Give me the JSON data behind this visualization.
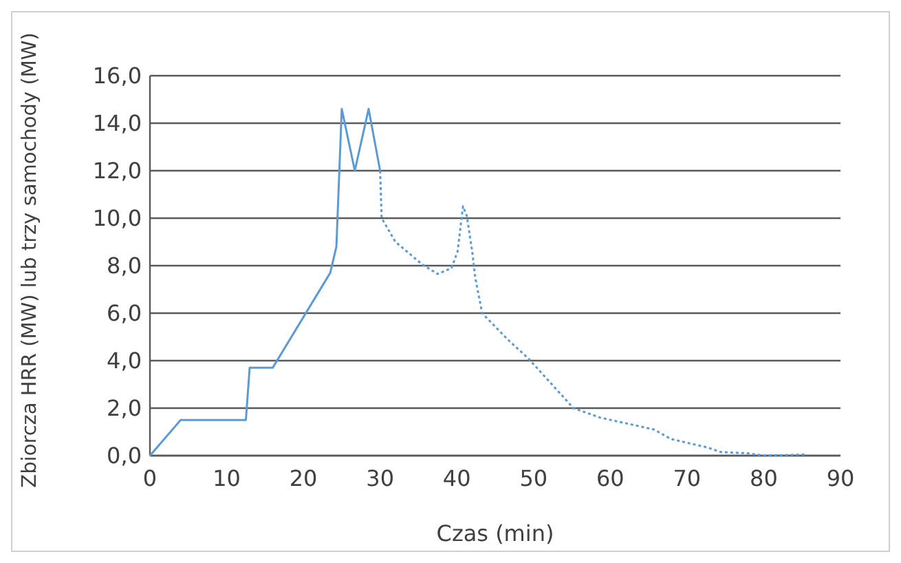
{
  "chart_data": {
    "type": "line",
    "xlabel": "Czas (min)",
    "ylabel": "Zbiorcza HRR (MW) lub trzy samochody (MW)",
    "xlim": [
      0,
      90
    ],
    "xticks": [
      0,
      10,
      20,
      30,
      40,
      50,
      60,
      70,
      80,
      90
    ],
    "ylim": [
      0,
      16
    ],
    "yticks": [
      {
        "value": 0,
        "label": "0,0"
      },
      {
        "value": 2,
        "label": "2,0"
      },
      {
        "value": 4,
        "label": "4,0"
      },
      {
        "value": 6,
        "label": "6,0"
      },
      {
        "value": 8,
        "label": "8,0"
      },
      {
        "value": 10,
        "label": "10,0"
      },
      {
        "value": 12,
        "label": "12,0"
      },
      {
        "value": 14,
        "label": "14,0"
      },
      {
        "value": 16,
        "label": "16,0"
      }
    ],
    "grid": "y",
    "marker": "none",
    "series": [
      {
        "color": "#5b9bd5",
        "line_style": "solid",
        "x": [
          0,
          4,
          12.5,
          13,
          16,
          23.5,
          24.3,
          25,
          26.7,
          28.5,
          30
        ],
        "values": [
          0,
          1.5,
          1.5,
          3.7,
          3.7,
          7.7,
          8.8,
          14.6,
          12,
          14.6,
          12
        ]
      },
      {
        "color": "#5b9bd5",
        "line_style": "dotted",
        "x": [
          30,
          30.2,
          32,
          35.5,
          37.5,
          39.3,
          40.1,
          40.8,
          41.3,
          42,
          42.4,
          43.3,
          46.6,
          49.3,
          55.2,
          58.7,
          65.7,
          67.9,
          72.6,
          74.4,
          77.8,
          80.1,
          85.6
        ],
        "values": [
          12,
          10,
          9,
          8.05,
          7.65,
          7.9,
          8.6,
          10.5,
          10.1,
          8.6,
          7.5,
          6,
          4.9,
          4.1,
          2,
          1.6,
          1.1,
          0.7,
          0.35,
          0.15,
          0.1,
          0,
          0.05
        ]
      }
    ]
  }
}
